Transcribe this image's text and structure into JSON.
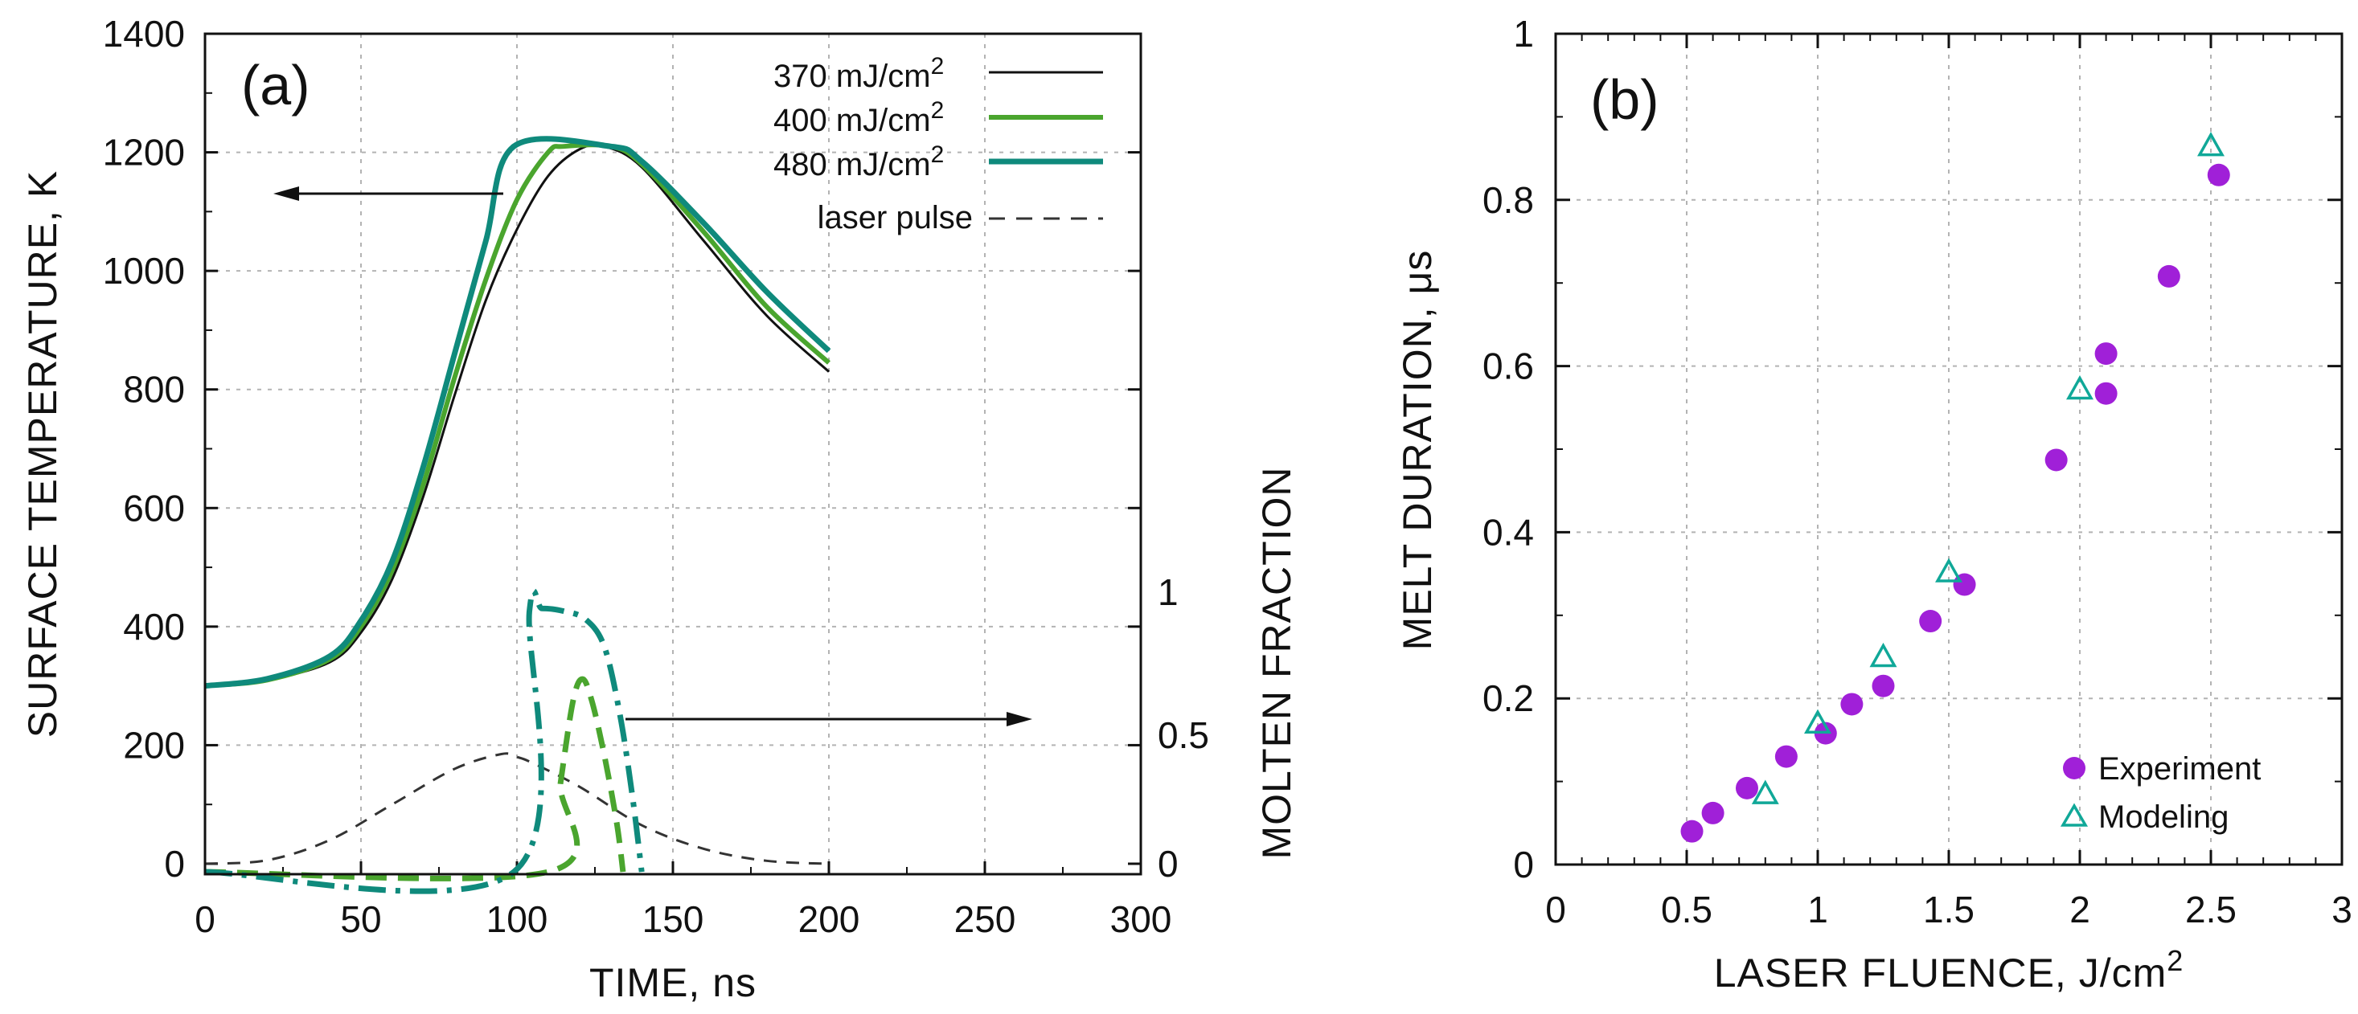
{
  "chart_data": [
    {
      "type": "line",
      "panel_label": "(a)",
      "xlabel": "TIME, ns",
      "ylabel": "SURFACE  TEMPERATURE, K",
      "y2label": "MOLTEN  FRACTION",
      "xlim": [
        0,
        300
      ],
      "ylim": [
        0,
        1400
      ],
      "y2lim": [
        0,
        1.5
      ],
      "xticks": [
        "0",
        "50",
        "100",
        "150",
        "200",
        "250",
        "300"
      ],
      "yticks": [
        "0",
        "200",
        "400",
        "600",
        "800",
        "1000",
        "1200",
        "1400"
      ],
      "y2ticks": [
        "0",
        "0.5",
        "1"
      ],
      "grid": true,
      "legend_position": "top-right",
      "colors": {
        "c370": "#111111",
        "c400": "#4aa52e",
        "c480": "#0f8a7c",
        "pulse": "#333333"
      },
      "legend": [
        {
          "label": "370 mJ/cm",
          "sup": "2",
          "color": "#111111",
          "style": "solid"
        },
        {
          "label": "400 mJ/cm",
          "sup": "2",
          "color": "#4aa52e",
          "style": "solid"
        },
        {
          "label": "480 mJ/cm",
          "sup": "2",
          "color": "#0f8a7c",
          "style": "solid"
        },
        {
          "label": "laser pulse",
          "sup": "",
          "color": "#333333",
          "style": "dashed"
        }
      ],
      "series": [
        {
          "name": "370 mJ/cm2",
          "axis": "left",
          "x": [
            0,
            20,
            40,
            50,
            60,
            70,
            80,
            90,
            100,
            110,
            120,
            128,
            140,
            160,
            180,
            200
          ],
          "y": [
            300,
            310,
            340,
            390,
            480,
            620,
            790,
            950,
            1070,
            1160,
            1205,
            1210,
            1175,
            1050,
            925,
            830
          ]
        },
        {
          "name": "400 mJ/cm2",
          "axis": "left",
          "x": [
            0,
            20,
            40,
            50,
            60,
            70,
            80,
            90,
            100,
            110,
            115,
            130,
            140,
            160,
            180,
            200
          ],
          "y": [
            300,
            310,
            345,
            400,
            495,
            640,
            820,
            985,
            1120,
            1200,
            1210,
            1210,
            1180,
            1065,
            940,
            845
          ]
        },
        {
          "name": "480 mJ/cm2",
          "axis": "left",
          "x": [
            0,
            20,
            40,
            50,
            60,
            70,
            80,
            90,
            99,
            130,
            140,
            160,
            180,
            200
          ],
          "y": [
            300,
            312,
            350,
            410,
            510,
            670,
            860,
            1050,
            1210,
            1210,
            1185,
            1080,
            965,
            865
          ]
        },
        {
          "name": "laser pulse",
          "axis": "left",
          "x": [
            0,
            20,
            40,
            60,
            80,
            95,
            100,
            105,
            120,
            140,
            160,
            180,
            200
          ],
          "y": [
            0,
            6,
            40,
            100,
            160,
            185,
            180,
            170,
            130,
            65,
            25,
            5,
            0
          ]
        },
        {
          "name": "400 mJ/cm2 molten fraction",
          "axis": "right",
          "x": [
            0,
            110,
            114,
            118,
            121,
            124,
            128,
            132,
            134
          ],
          "y": [
            -0.03,
            -0.03,
            0.3,
            0.6,
            0.68,
            0.6,
            0.4,
            0.15,
            -0.03
          ]
        },
        {
          "name": "480 mJ/cm2 molten fraction",
          "axis": "right",
          "x": [
            0,
            99,
            104,
            108,
            115,
            122,
            128,
            133,
            137,
            140
          ],
          "y": [
            -0.03,
            -0.03,
            0.93,
            0.94,
            0.93,
            0.9,
            0.8,
            0.55,
            0.25,
            -0.03
          ]
        }
      ]
    },
    {
      "type": "scatter",
      "panel_label": "(b)",
      "xlabel": "LASER  FLUENCE, J/cm",
      "xlabel_sup": "2",
      "ylabel": "MELT  DURATION, μs",
      "xlim": [
        0,
        3
      ],
      "ylim": [
        0,
        1
      ],
      "xticks": [
        "0",
        "0.5",
        "1",
        "1.5",
        "2",
        "2.5",
        "3"
      ],
      "yticks": [
        "0",
        "0.2",
        "0.4",
        "0.6",
        "0.8",
        "1"
      ],
      "grid": true,
      "legend_position": "bottom-right",
      "legend": [
        {
          "label": "Experiment",
          "marker": "circle",
          "color": "#a020d8"
        },
        {
          "label": "Modeling",
          "marker": "triangle-open",
          "color": "#10a898"
        }
      ],
      "series": [
        {
          "name": "Experiment",
          "marker": "circle",
          "color": "#a020d8",
          "x": [
            0.52,
            0.6,
            0.73,
            0.88,
            1.03,
            1.13,
            1.25,
            1.43,
            1.56,
            1.91,
            2.1,
            2.1,
            2.34,
            2.53
          ],
          "y": [
            0.04,
            0.062,
            0.092,
            0.13,
            0.158,
            0.193,
            0.215,
            0.293,
            0.337,
            0.487,
            0.567,
            0.615,
            0.708,
            0.83
          ]
        },
        {
          "name": "Modeling",
          "marker": "triangle",
          "color": "#10a898",
          "x": [
            0.8,
            1.0,
            1.25,
            1.5,
            2.0,
            2.5
          ],
          "y": [
            0.085,
            0.17,
            0.25,
            0.352,
            0.572,
            0.865
          ]
        }
      ]
    }
  ]
}
